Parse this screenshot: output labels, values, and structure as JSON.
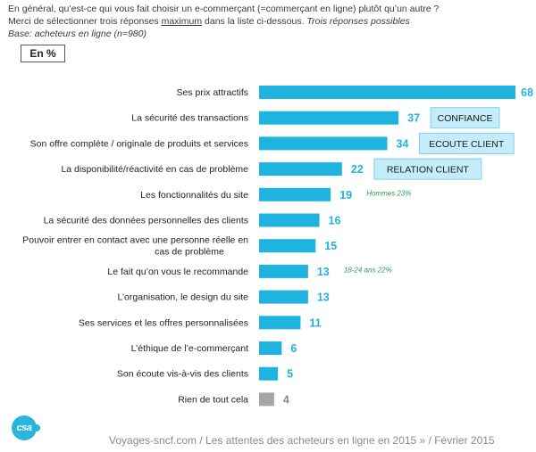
{
  "header": {
    "line1": "En général, qu’est-ce qui vous fait choisir un e-commerçant (=commerçant en ligne) plutôt qu’un autre ?",
    "line2_pre": "Merci de sélectionner trois réponses ",
    "line2_emph": "maximum",
    "line2_post": " dans la liste ci-dessous. ",
    "line2_italic": "Trois réponses possibles",
    "base": "Base: acheteurs en ligne (n=980)",
    "unit": "En %"
  },
  "chart_data": {
    "type": "bar",
    "orientation": "horizontal",
    "xlim": [
      0,
      68
    ],
    "categories": [
      "Ses prix attractifs",
      "La sécurité des transactions",
      "Son offre complète / originale de produits et services",
      "La disponibilité/réactivité en cas de problème",
      "Les fonctionnalités du site",
      "La sécurité des données personnelles des clients",
      "Pouvoir entrer en contact avec une personne réelle en cas de problème",
      "Le fait qu’on vous le recommande",
      "L’organisation, le design du site",
      "Ses services et les offres personnalisées",
      "L’éthique de l’e-commerçant",
      "Son écoute vis-à-vis des clients",
      "Rien de tout cela"
    ],
    "values": [
      68,
      37,
      34,
      22,
      19,
      16,
      15,
      13,
      13,
      11,
      6,
      5,
      4
    ],
    "annotations": [
      {
        "category": "La sécurité des transactions",
        "text": "CONFIANCE",
        "style": "box"
      },
      {
        "category": "Son offre complète / originale de produits et services",
        "text": "ECOUTE CLIENT",
        "style": "box"
      },
      {
        "category": "La disponibilité/réactivité en cas de problème",
        "text": "RELATION CLIENT",
        "style": "box"
      },
      {
        "category": "Les fonctionnalités du site",
        "text": "Hommes 23%",
        "style": "note"
      },
      {
        "category": "Le fait qu’on vous le recommande",
        "text": "18-24 ans 22%",
        "style": "note"
      }
    ],
    "colors": {
      "bar": "#1fb3df",
      "bar_last": "#a6a6a6",
      "value_label": "#1fb3df",
      "value_label_last": "#8a8a8a",
      "box_fill": "#c5ecf9",
      "box_border": "#7fcfe9",
      "note": "#2e9a4f"
    }
  },
  "footer": {
    "logo": "csa",
    "source": "Voyages-sncf.com / Les attentes des acheteurs en ligne en 2015 » / Février 2015"
  }
}
